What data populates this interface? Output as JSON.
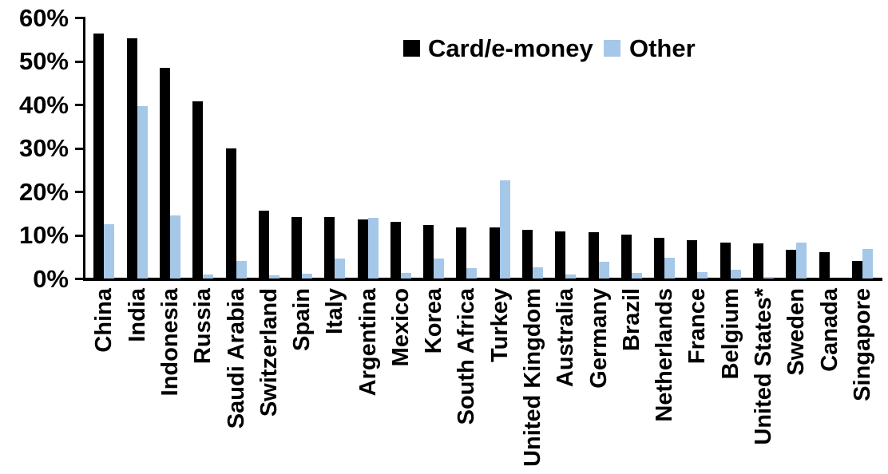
{
  "chart_data": {
    "type": "bar",
    "title": "",
    "categories": [
      "China",
      "India",
      "Indonesia",
      "Russia",
      "Saudi Arabia",
      "Switzerland",
      "Spain",
      "Italy",
      "Argentina",
      "Mexico",
      "Korea",
      "South Africa",
      "Turkey",
      "United Kingdom",
      "Australia",
      "Germany",
      "Brazil",
      "Netherlands",
      "France",
      "Belgium",
      "United States*",
      "Sweden",
      "Canada",
      "Singapore"
    ],
    "series": [
      {
        "name": "Card/e-money",
        "color": "#000000",
        "values": [
          56.4,
          55.2,
          48.4,
          40.7,
          29.9,
          15.6,
          14.2,
          14.1,
          13.6,
          13.0,
          12.3,
          11.8,
          11.7,
          11.2,
          10.9,
          10.6,
          10.1,
          9.3,
          8.8,
          8.2,
          8.0,
          6.6,
          6.0,
          4.0
        ]
      },
      {
        "name": "Other",
        "color": "#A5C7E8",
        "values": [
          12.4,
          39.7,
          14.5,
          1.0,
          4.0,
          0.8,
          1.1,
          4.5,
          13.9,
          1.3,
          4.6,
          2.3,
          22.6,
          2.5,
          1.0,
          3.9,
          1.2,
          4.8,
          1.5,
          2.0,
          0.3,
          8.3,
          0.0,
          6.8
        ]
      }
    ],
    "xlabel": "",
    "ylabel": "",
    "ylim": [
      0,
      60
    ],
    "ytick_step": 10,
    "ytick_labels": [
      "0%",
      "10%",
      "20%",
      "30%",
      "40%",
      "50%",
      "60%"
    ],
    "legend_position": "top-center",
    "grid": false,
    "axis_color": "#000000"
  }
}
